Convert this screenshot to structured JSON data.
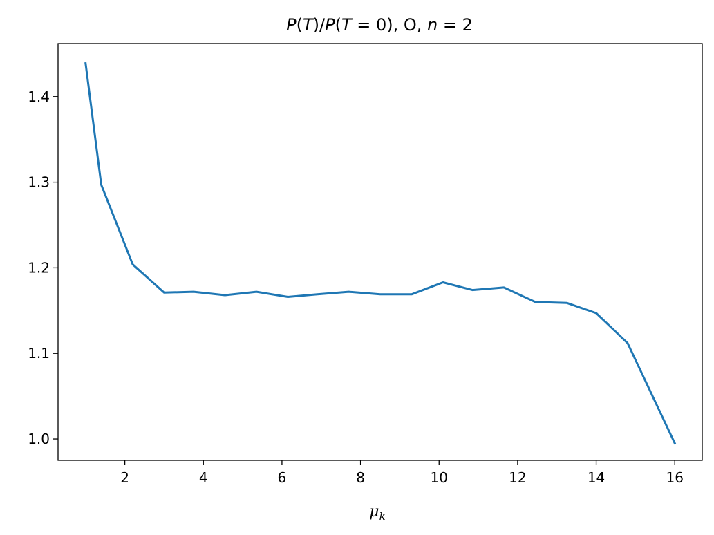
{
  "chart_data": {
    "type": "line",
    "title": "P(T)/P(T = 0), O, n = 2",
    "xlabel": "μk",
    "ylabel": "",
    "xlim": [
      0.3,
      16.7
    ],
    "ylim": [
      0.975,
      1.462
    ],
    "xticks": [
      2,
      4,
      6,
      8,
      10,
      12,
      14,
      16
    ],
    "yticks": [
      1.0,
      1.1,
      1.2,
      1.3,
      1.4
    ],
    "ytick_labels": [
      "1.0",
      "1.1",
      "1.2",
      "1.3",
      "1.4"
    ],
    "grid": false,
    "series": [
      {
        "color": "#1f77b4",
        "x": [
          1.0,
          1.4,
          2.2,
          3.0,
          3.75,
          4.55,
          5.35,
          6.15,
          6.9,
          7.7,
          8.5,
          9.3,
          10.1,
          10.85,
          11.65,
          12.45,
          13.25,
          14.0,
          14.8,
          16.0
        ],
        "y": [
          1.439,
          1.297,
          1.204,
          1.171,
          1.172,
          1.168,
          1.172,
          1.166,
          1.169,
          1.172,
          1.169,
          1.169,
          1.183,
          1.174,
          1.177,
          1.16,
          1.159,
          1.147,
          1.112,
          0.995
        ]
      }
    ]
  }
}
